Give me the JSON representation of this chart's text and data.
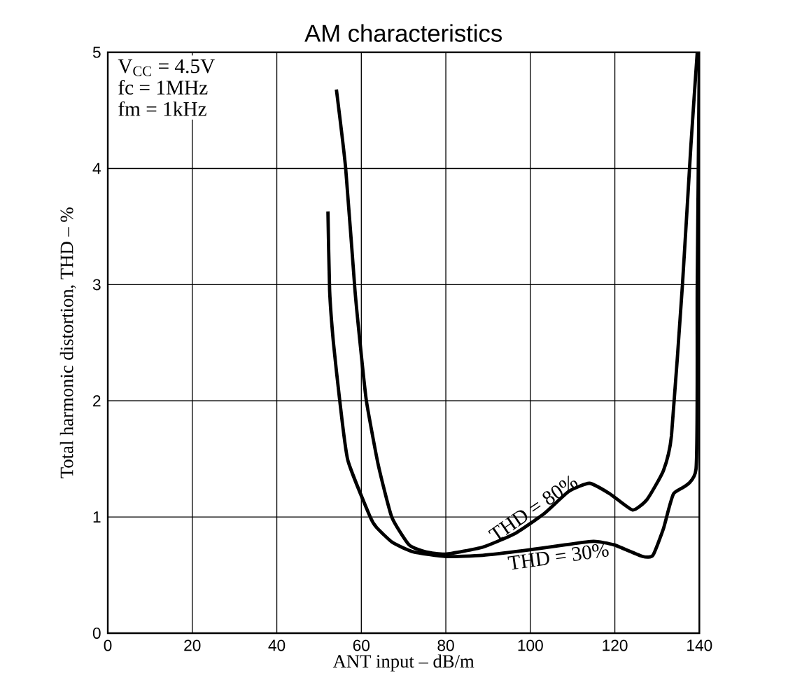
{
  "chart_data": {
    "type": "line",
    "title": "AM characteristics",
    "xlabel": "ANT input  –  dB/m",
    "ylabel": "Total harmonic distortion, THD  –  %",
    "xlim": [
      0,
      140
    ],
    "ylim": [
      0,
      5
    ],
    "xticks": [
      0,
      20,
      40,
      60,
      80,
      100,
      120,
      140
    ],
    "yticks": [
      0,
      1,
      2,
      3,
      4,
      5
    ],
    "grid": true,
    "annotations": [
      "V$_{CC}$ = 4.5V",
      "fc = 1MHz",
      "fm = 1kHz"
    ],
    "series": [
      {
        "name": "THD = 80%",
        "color": "#000000",
        "x": [
          54.1,
          56.3,
          58.5,
          59.7,
          61.2,
          64,
          67.2,
          71.3,
          75.2,
          80,
          88.7,
          96.5,
          103.3,
          109.1,
          114,
          118.8,
          124.2,
          127.6,
          131.5,
          133.4,
          136,
          138,
          139.5
        ],
        "values": [
          4.68,
          4.0,
          2.95,
          2.5,
          2.0,
          1.45,
          1.0,
          0.76,
          0.7,
          0.68,
          0.74,
          0.86,
          1.03,
          1.22,
          1.29,
          1.2,
          1.06,
          1.15,
          1.4,
          1.7,
          3.0,
          4.2,
          5.0
        ]
      },
      {
        "name": "THD = 30%",
        "color": "#000000",
        "x": [
          52.1,
          52.5,
          53.4,
          54.9,
          56.8,
          62.1,
          63.6,
          67.4,
          72.3,
          80,
          88.7,
          98.4,
          108.2,
          115,
          119.8,
          126.6,
          129,
          131.5,
          133.9,
          139.2,
          139.5,
          140
        ],
        "values": [
          3.63,
          2.95,
          2.5,
          2.0,
          1.49,
          1.0,
          0.91,
          0.78,
          0.7,
          0.66,
          0.67,
          0.71,
          0.76,
          0.79,
          0.76,
          0.66,
          0.67,
          0.9,
          1.2,
          1.41,
          3.0,
          5.0
        ]
      }
    ]
  }
}
